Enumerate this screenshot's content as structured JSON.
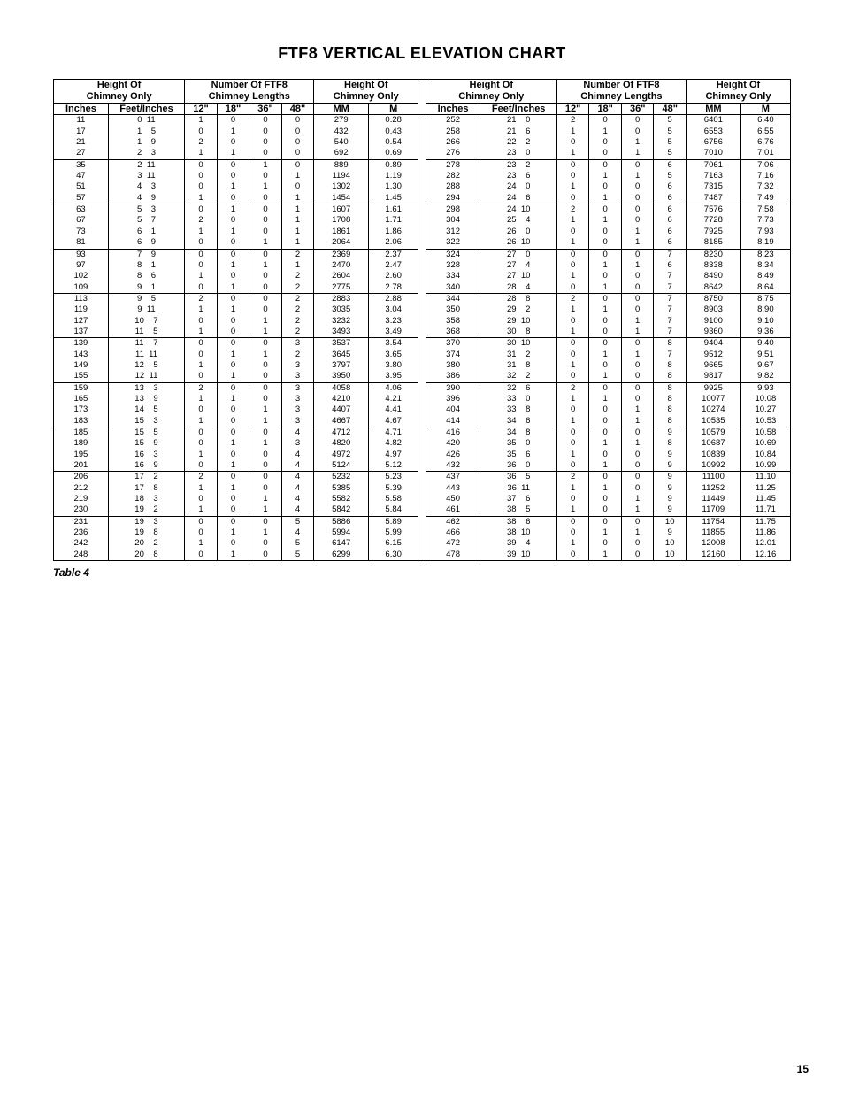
{
  "title": "FTF8 VERTICAL ELEVATION CHART",
  "caption": "Table 4",
  "page_number": "15",
  "headers": {
    "height_of_chimney_only": "Height Of\nChimney Only",
    "number_of_lengths": "Number Of FTF8\nChimney Lengths",
    "inches": "Inches",
    "feet_inches": "Feet/Inches",
    "c12": "12\"",
    "c18": "18\"",
    "c36": "36\"",
    "c48": "48\"",
    "mm": "MM",
    "m": "M"
  },
  "group_size": 4,
  "rows_left": [
    [
      11,
      0,
      11,
      1,
      0,
      0,
      0,
      279,
      0.28
    ],
    [
      17,
      1,
      5,
      0,
      1,
      0,
      0,
      432,
      0.43
    ],
    [
      21,
      1,
      9,
      2,
      0,
      0,
      0,
      540,
      0.54
    ],
    [
      27,
      2,
      3,
      1,
      1,
      0,
      0,
      692,
      0.69
    ],
    [
      35,
      2,
      11,
      0,
      0,
      1,
      0,
      889,
      0.89
    ],
    [
      47,
      3,
      11,
      0,
      0,
      0,
      1,
      1194,
      1.19
    ],
    [
      51,
      4,
      3,
      0,
      1,
      1,
      0,
      1302,
      1.3
    ],
    [
      57,
      4,
      9,
      1,
      0,
      0,
      1,
      1454,
      1.45
    ],
    [
      63,
      5,
      3,
      0,
      1,
      0,
      1,
      1607,
      1.61
    ],
    [
      67,
      5,
      7,
      2,
      0,
      0,
      1,
      1708,
      1.71
    ],
    [
      73,
      6,
      1,
      1,
      1,
      0,
      1,
      1861,
      1.86
    ],
    [
      81,
      6,
      9,
      0,
      0,
      1,
      1,
      2064,
      2.06
    ],
    [
      93,
      7,
      9,
      0,
      0,
      0,
      2,
      2369,
      2.37
    ],
    [
      97,
      8,
      1,
      0,
      1,
      1,
      1,
      2470,
      2.47
    ],
    [
      102,
      8,
      6,
      1,
      0,
      0,
      2,
      2604,
      2.6
    ],
    [
      109,
      9,
      1,
      0,
      1,
      0,
      2,
      2775,
      2.78
    ],
    [
      113,
      9,
      5,
      2,
      0,
      0,
      2,
      2883,
      2.88
    ],
    [
      119,
      9,
      11,
      1,
      1,
      0,
      2,
      3035,
      3.04
    ],
    [
      127,
      10,
      7,
      0,
      0,
      1,
      2,
      3232,
      3.23
    ],
    [
      137,
      11,
      5,
      1,
      0,
      1,
      2,
      3493,
      3.49
    ],
    [
      139,
      11,
      7,
      0,
      0,
      0,
      3,
      3537,
      3.54
    ],
    [
      143,
      11,
      11,
      0,
      1,
      1,
      2,
      3645,
      3.65
    ],
    [
      149,
      12,
      5,
      1,
      0,
      0,
      3,
      3797,
      3.8
    ],
    [
      155,
      12,
      11,
      0,
      1,
      0,
      3,
      3950,
      3.95
    ],
    [
      159,
      13,
      3,
      2,
      0,
      0,
      3,
      4058,
      4.06
    ],
    [
      165,
      13,
      9,
      1,
      1,
      0,
      3,
      4210,
      4.21
    ],
    [
      173,
      14,
      5,
      0,
      0,
      1,
      3,
      4407,
      4.41
    ],
    [
      183,
      15,
      3,
      1,
      0,
      1,
      3,
      4667,
      4.67
    ],
    [
      185,
      15,
      5,
      0,
      0,
      0,
      4,
      4712,
      4.71
    ],
    [
      189,
      15,
      9,
      0,
      1,
      1,
      3,
      4820,
      4.82
    ],
    [
      195,
      16,
      3,
      1,
      0,
      0,
      4,
      4972,
      4.97
    ],
    [
      201,
      16,
      9,
      0,
      1,
      0,
      4,
      5124,
      5.12
    ],
    [
      206,
      17,
      2,
      2,
      0,
      0,
      4,
      5232,
      5.23
    ],
    [
      212,
      17,
      8,
      1,
      1,
      0,
      4,
      5385,
      5.39
    ],
    [
      219,
      18,
      3,
      0,
      0,
      1,
      4,
      5582,
      5.58
    ],
    [
      230,
      19,
      2,
      1,
      0,
      1,
      4,
      5842,
      5.84
    ],
    [
      231,
      19,
      3,
      0,
      0,
      0,
      5,
      5886,
      5.89
    ],
    [
      236,
      19,
      8,
      0,
      1,
      1,
      4,
      5994,
      5.99
    ],
    [
      242,
      20,
      2,
      1,
      0,
      0,
      5,
      6147,
      6.15
    ],
    [
      248,
      20,
      8,
      0,
      1,
      0,
      5,
      6299,
      6.3
    ]
  ],
  "rows_right": [
    [
      252,
      21,
      0,
      2,
      0,
      0,
      5,
      6401,
      6.4
    ],
    [
      258,
      21,
      6,
      1,
      1,
      0,
      5,
      6553,
      6.55
    ],
    [
      266,
      22,
      2,
      0,
      0,
      1,
      5,
      6756,
      6.76
    ],
    [
      276,
      23,
      0,
      1,
      0,
      1,
      5,
      7010,
      7.01
    ],
    [
      278,
      23,
      2,
      0,
      0,
      0,
      6,
      7061,
      7.06
    ],
    [
      282,
      23,
      6,
      0,
      1,
      1,
      5,
      7163,
      7.16
    ],
    [
      288,
      24,
      0,
      1,
      0,
      0,
      6,
      7315,
      7.32
    ],
    [
      294,
      24,
      6,
      0,
      1,
      0,
      6,
      7487,
      7.49
    ],
    [
      298,
      24,
      10,
      2,
      0,
      0,
      6,
      7576,
      7.58
    ],
    [
      304,
      25,
      4,
      1,
      1,
      0,
      6,
      7728,
      7.73
    ],
    [
      312,
      26,
      0,
      0,
      0,
      1,
      6,
      7925,
      7.93
    ],
    [
      322,
      26,
      10,
      1,
      0,
      1,
      6,
      8185,
      8.19
    ],
    [
      324,
      27,
      0,
      0,
      0,
      0,
      7,
      8230,
      8.23
    ],
    [
      328,
      27,
      4,
      0,
      1,
      1,
      6,
      8338,
      8.34
    ],
    [
      334,
      27,
      10,
      1,
      0,
      0,
      7,
      8490,
      8.49
    ],
    [
      340,
      28,
      4,
      0,
      1,
      0,
      7,
      8642,
      8.64
    ],
    [
      344,
      28,
      8,
      2,
      0,
      0,
      7,
      8750,
      8.75
    ],
    [
      350,
      29,
      2,
      1,
      1,
      0,
      7,
      8903,
      8.9
    ],
    [
      358,
      29,
      10,
      0,
      0,
      1,
      7,
      9100,
      9.1
    ],
    [
      368,
      30,
      8,
      1,
      0,
      1,
      7,
      9360,
      9.36
    ],
    [
      370,
      30,
      10,
      0,
      0,
      0,
      8,
      9404,
      9.4
    ],
    [
      374,
      31,
      2,
      0,
      1,
      1,
      7,
      9512,
      9.51
    ],
    [
      380,
      31,
      8,
      1,
      0,
      0,
      8,
      9665,
      9.67
    ],
    [
      386,
      32,
      2,
      0,
      1,
      0,
      8,
      9817,
      9.82
    ],
    [
      390,
      32,
      6,
      2,
      0,
      0,
      8,
      9925,
      9.93
    ],
    [
      396,
      33,
      0,
      1,
      1,
      0,
      8,
      10077,
      10.08
    ],
    [
      404,
      33,
      8,
      0,
      0,
      1,
      8,
      10274,
      10.27
    ],
    [
      414,
      34,
      6,
      1,
      0,
      1,
      8,
      10535,
      10.53
    ],
    [
      416,
      34,
      8,
      0,
      0,
      0,
      9,
      10579,
      10.58
    ],
    [
      420,
      35,
      0,
      0,
      1,
      1,
      8,
      10687,
      10.69
    ],
    [
      426,
      35,
      6,
      1,
      0,
      0,
      9,
      10839,
      10.84
    ],
    [
      432,
      36,
      0,
      0,
      1,
      0,
      9,
      10992,
      10.99
    ],
    [
      437,
      36,
      5,
      2,
      0,
      0,
      9,
      11100,
      11.1
    ],
    [
      443,
      36,
      11,
      1,
      1,
      0,
      9,
      11252,
      11.25
    ],
    [
      450,
      37,
      6,
      0,
      0,
      1,
      9,
      11449,
      11.45
    ],
    [
      461,
      38,
      5,
      1,
      0,
      1,
      9,
      11709,
      11.71
    ],
    [
      462,
      38,
      6,
      0,
      0,
      0,
      10,
      11754,
      11.75
    ],
    [
      466,
      38,
      10,
      0,
      1,
      1,
      9,
      11855,
      11.86
    ],
    [
      472,
      39,
      4,
      1,
      0,
      0,
      10,
      12008,
      12.01
    ],
    [
      478,
      39,
      10,
      0,
      1,
      0,
      10,
      12160,
      12.16
    ]
  ],
  "col_widths": {
    "inches": 44,
    "feet": 30,
    "in": 30,
    "n": 26,
    "mm": 44,
    "m": 40
  },
  "style": {
    "font_data": 9.5,
    "font_hdr": 11,
    "border_color": "#000000",
    "bg": "#ffffff"
  }
}
